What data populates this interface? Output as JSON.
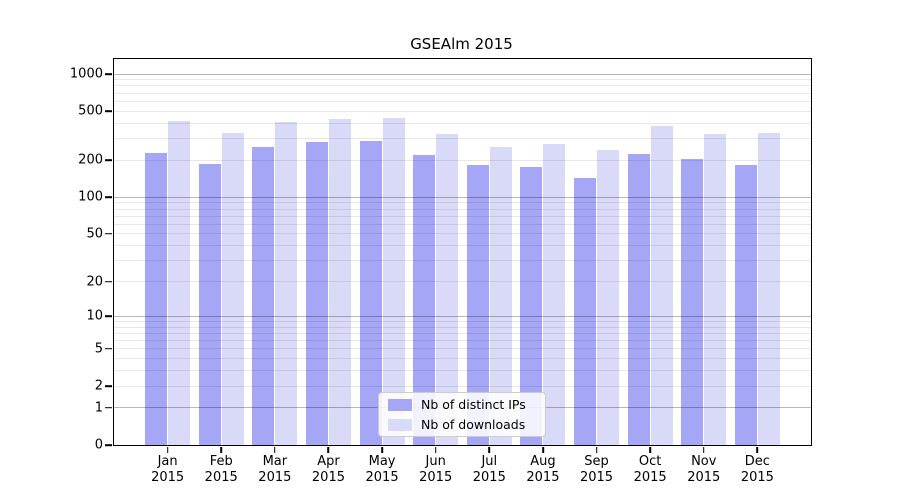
{
  "chart_data": {
    "type": "bar",
    "title": "GSEAlm 2015",
    "categories": [
      "Jan",
      "Feb",
      "Mar",
      "Apr",
      "May",
      "Jun",
      "Jul",
      "Aug",
      "Sep",
      "Oct",
      "Nov",
      "Dec"
    ],
    "year": "2015",
    "series": [
      {
        "name": "Nb of distinct IPs",
        "color": "#a6a6f7",
        "values": [
          230,
          186,
          257,
          280,
          286,
          222,
          184,
          177,
          144,
          224,
          204,
          184
        ]
      },
      {
        "name": "Nb of downloads",
        "color": "#d9d9f8",
        "values": [
          415,
          332,
          408,
          436,
          440,
          328,
          256,
          270,
          244,
          378,
          325,
          335
        ]
      }
    ],
    "yticks": [
      0,
      1,
      2,
      5,
      10,
      20,
      50,
      100,
      200,
      500,
      1000
    ],
    "yscale": "log1p",
    "ylim": [
      0,
      1325
    ],
    "grid": "horizontal, light minor lines at 2-9 per decade, darker lines at decades",
    "legend_position": "inside lower-center-left",
    "xlabel": "",
    "ylabel": ""
  }
}
